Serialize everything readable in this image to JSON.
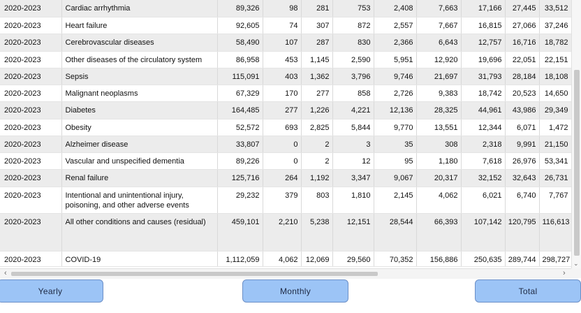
{
  "table": {
    "rows": [
      {
        "period": "2020-2023",
        "cause": "Cardiac arrhythmia",
        "values": [
          "89,326",
          "98",
          "281",
          "753",
          "2,408",
          "7,663",
          "17,166",
          "27,445",
          "33,512"
        ],
        "shade": true
      },
      {
        "period": "2020-2023",
        "cause": "Heart failure",
        "values": [
          "92,605",
          "74",
          "307",
          "872",
          "2,557",
          "7,667",
          "16,815",
          "27,066",
          "37,246"
        ],
        "shade": false
      },
      {
        "period": "2020-2023",
        "cause": "Cerebrovascular diseases",
        "values": [
          "58,490",
          "107",
          "287",
          "830",
          "2,366",
          "6,643",
          "12,757",
          "16,716",
          "18,782"
        ],
        "shade": true
      },
      {
        "period": "2020-2023",
        "cause": "Other diseases of the circulatory system",
        "values": [
          "86,958",
          "453",
          "1,145",
          "2,590",
          "5,951",
          "12,920",
          "19,696",
          "22,051",
          "22,151"
        ],
        "shade": false
      },
      {
        "period": "2020-2023",
        "cause": "Sepsis",
        "values": [
          "115,091",
          "403",
          "1,362",
          "3,796",
          "9,746",
          "21,697",
          "31,793",
          "28,184",
          "18,108"
        ],
        "shade": true
      },
      {
        "period": "2020-2023",
        "cause": "Malignant neoplasms",
        "values": [
          "67,329",
          "170",
          "277",
          "858",
          "2,726",
          "9,383",
          "18,742",
          "20,523",
          "14,650"
        ],
        "shade": false
      },
      {
        "period": "2020-2023",
        "cause": "Diabetes",
        "values": [
          "164,485",
          "277",
          "1,226",
          "4,221",
          "12,136",
          "28,325",
          "44,961",
          "43,986",
          "29,349"
        ],
        "shade": true
      },
      {
        "period": "2020-2023",
        "cause": "Obesity",
        "values": [
          "52,572",
          "693",
          "2,825",
          "5,844",
          "9,770",
          "13,551",
          "12,344",
          "6,071",
          "1,472"
        ],
        "shade": false
      },
      {
        "period": "2020-2023",
        "cause": "Alzheimer disease",
        "values": [
          "33,807",
          "0",
          "2",
          "3",
          "35",
          "308",
          "2,318",
          "9,991",
          "21,150"
        ],
        "shade": true
      },
      {
        "period": "2020-2023",
        "cause": "Vascular and unspecified dementia",
        "values": [
          "89,226",
          "0",
          "2",
          "12",
          "95",
          "1,180",
          "7,618",
          "26,976",
          "53,341"
        ],
        "shade": false
      },
      {
        "period": "2020-2023",
        "cause": "Renal failure",
        "values": [
          "125,716",
          "264",
          "1,192",
          "3,347",
          "9,067",
          "20,317",
          "32,152",
          "32,643",
          "26,731"
        ],
        "shade": true
      },
      {
        "period": "2020-2023",
        "cause": "Intentional and unintentional injury, poisoning, and other adverse events",
        "values": [
          "29,232",
          "379",
          "803",
          "1,810",
          "2,145",
          "4,062",
          "6,021",
          "6,740",
          "7,767"
        ],
        "shade": false
      },
      {
        "period": "2020-2023",
        "cause": "All other conditions and causes (residual)",
        "values": [
          "459,101",
          "2,210",
          "5,238",
          "12,151",
          "28,544",
          "66,393",
          "107,142",
          "120,795",
          "116,613"
        ],
        "shade": true
      },
      {
        "period": "2020-2023",
        "cause": "COVID-19",
        "values": [
          "1,112,059",
          "4,062",
          "12,069",
          "29,560",
          "70,352",
          "156,886",
          "250,635",
          "289,744",
          "298,727"
        ],
        "shade": false
      }
    ]
  },
  "buttons": {
    "yearly": "Yearly",
    "monthly": "Monthly",
    "total": "Total"
  },
  "colors": {
    "button_fill": "#9cc4f6",
    "row_shade": "#ececec"
  }
}
